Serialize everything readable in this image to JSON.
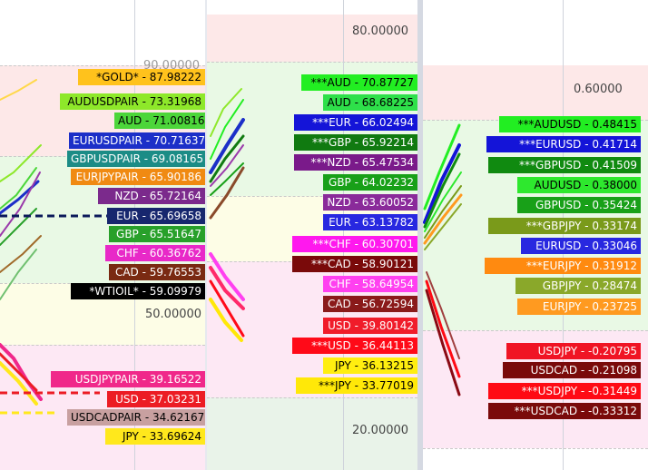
{
  "axes": {
    "p1": [
      "90.00000",
      "50.00000"
    ],
    "p2": [
      "80.00000",
      "20.00000"
    ],
    "p3": [
      "0.60000"
    ]
  },
  "panel1": [
    {
      "text": "*GOLD* - 87.98222",
      "bg": "#ffc21c",
      "fg": "#000000"
    },
    {
      "text": "AUDUSDPAIR - 73.31968",
      "bg": "#8ee82a",
      "fg": "#000000"
    },
    {
      "text": "AUD - 71.00816",
      "bg": "#4cd63a",
      "fg": "#000000"
    },
    {
      "text": "EURUSDPAIR - 70.71637",
      "bg": "#1c2fc8",
      "fg": "#ffffff"
    },
    {
      "text": "GBPUSDPAIR - 69.08165",
      "bg": "#1c8c86",
      "fg": "#ffffff"
    },
    {
      "text": "EURJPYPAIR - 65.90186",
      "bg": "#f08a12",
      "fg": "#ffffff"
    },
    {
      "text": "NZD - 65.72164",
      "bg": "#7b2a8c",
      "fg": "#ffffff"
    },
    {
      "text": "EUR - 65.69658",
      "bg": "#17276e",
      "fg": "#ffffff"
    },
    {
      "text": "GBP - 65.51647",
      "bg": "#28a02a",
      "fg": "#ffffff"
    },
    {
      "text": "CHF - 60.36762",
      "bg": "#e829c8",
      "fg": "#ffffff"
    },
    {
      "text": "CAD - 59.76553",
      "bg": "#7a2a12",
      "fg": "#ffffff"
    },
    {
      "text": "*WTIOIL* - 59.09979",
      "bg": "#000000",
      "fg": "#ffffff"
    },
    {
      "text": "USDJPYPAIR - 39.16522",
      "bg": "#f0288a",
      "fg": "#ffffff"
    },
    {
      "text": "USD - 37.03231",
      "bg": "#ec1c24",
      "fg": "#ffffff"
    },
    {
      "text": "USDCADPAIR - 34.62167",
      "bg": "#c8a0a0",
      "fg": "#000000"
    },
    {
      "text": "JPY - 33.69624",
      "bg": "#ffe81c",
      "fg": "#000000"
    }
  ],
  "panel2": [
    {
      "text": "***AUD - 70.87727",
      "bg": "#22ee22",
      "fg": "#000000"
    },
    {
      "text": "AUD - 68.68225",
      "bg": "#2ee04a",
      "fg": "#000000"
    },
    {
      "text": "***EUR - 66.02494",
      "bg": "#1414d8",
      "fg": "#ffffff"
    },
    {
      "text": "***GBP - 65.92214",
      "bg": "#107a10",
      "fg": "#ffffff"
    },
    {
      "text": "***NZD - 65.47534",
      "bg": "#7a1a8a",
      "fg": "#ffffff"
    },
    {
      "text": "GBP - 64.02232",
      "bg": "#18a018",
      "fg": "#ffffff"
    },
    {
      "text": "NZD - 63.60052",
      "bg": "#8a2a9a",
      "fg": "#ffffff"
    },
    {
      "text": "EUR - 63.13782",
      "bg": "#2828e0",
      "fg": "#ffffff"
    },
    {
      "text": "***CHF - 60.30701",
      "bg": "#ff18ee",
      "fg": "#ffffff"
    },
    {
      "text": "***CAD - 58.90121",
      "bg": "#7a0a0a",
      "fg": "#ffffff"
    },
    {
      "text": "CHF - 58.64954",
      "bg": "#ff40f0",
      "fg": "#ffffff"
    },
    {
      "text": "CAD - 56.72594",
      "bg": "#8a1a1a",
      "fg": "#ffffff"
    },
    {
      "text": "USD - 39.80142",
      "bg": "#f01c2a",
      "fg": "#ffffff"
    },
    {
      "text": "***USD - 36.44113",
      "bg": "#ff0a18",
      "fg": "#ffffff"
    },
    {
      "text": "JPY - 36.13215",
      "bg": "#ffee10",
      "fg": "#000000"
    },
    {
      "text": "***JPY - 33.77019",
      "bg": "#ffe808",
      "fg": "#000000"
    }
  ],
  "panel3": [
    {
      "text": "***AUDUSD - 0.48415",
      "bg": "#22ee22",
      "fg": "#000000"
    },
    {
      "text": "***EURUSD - 0.41714",
      "bg": "#1414d8",
      "fg": "#ffffff"
    },
    {
      "text": "***GBPUSD - 0.41509",
      "bg": "#108a10",
      "fg": "#ffffff"
    },
    {
      "text": "AUDUSD - 0.38000",
      "bg": "#2ee82e",
      "fg": "#000000"
    },
    {
      "text": "GBPUSD - 0.35424",
      "bg": "#18a018",
      "fg": "#ffffff"
    },
    {
      "text": "***GBPJPY - 0.33174",
      "bg": "#7a9a1a",
      "fg": "#ffffff"
    },
    {
      "text": "EURUSD - 0.33046",
      "bg": "#2828e0",
      "fg": "#ffffff"
    },
    {
      "text": "***EURJPY - 0.31912",
      "bg": "#ff8a10",
      "fg": "#ffffff"
    },
    {
      "text": "GBPJPY - 0.28474",
      "bg": "#8aa82a",
      "fg": "#ffffff"
    },
    {
      "text": "EURJPY - 0.23725",
      "bg": "#ff9a20",
      "fg": "#ffffff"
    },
    {
      "text": "USDJPY - -0.20795",
      "bg": "#f01424",
      "fg": "#ffffff"
    },
    {
      "text": "USDCAD - -0.21098",
      "bg": "#7a0a0a",
      "fg": "#ffffff"
    },
    {
      "text": "***USDJPY - -0.31449",
      "bg": "#ff0a14",
      "fg": "#ffffff"
    },
    {
      "text": "***USDCAD - -0.33312",
      "bg": "#7a0a0a",
      "fg": "#ffffff"
    }
  ]
}
